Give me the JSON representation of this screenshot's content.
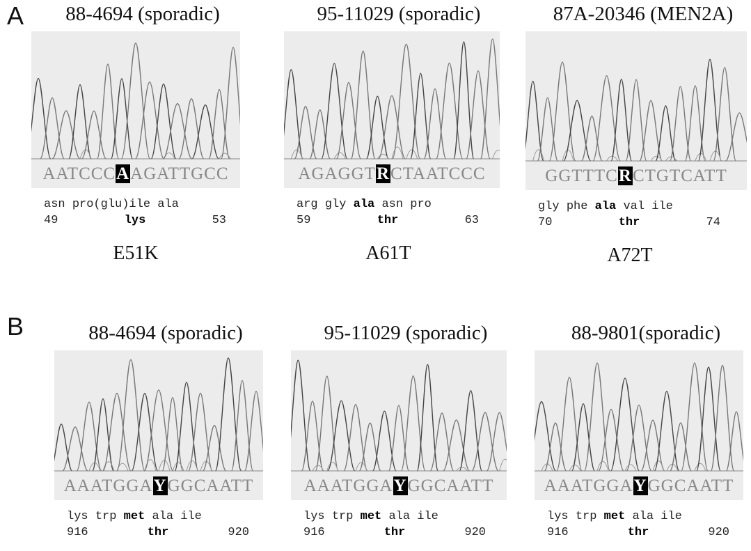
{
  "panels": [
    {
      "label": "A",
      "subpanels": [
        {
          "title": "88-4694 (sporadic)",
          "sequence": {
            "before": "AATCCC",
            "highlight": "A",
            "after": "AGATTGCC"
          },
          "residues": [
            {
              "text": "asn",
              "bold": false
            },
            {
              "text": "pro(glu)ile",
              "bold": false
            },
            {
              "text": "ala",
              "bold": false
            }
          ],
          "numbering": {
            "start": "49",
            "mutant": "lys",
            "end": "53"
          },
          "mutation": "E51K"
        },
        {
          "title": "95-11029 (sporadic)",
          "sequence": {
            "before": "AGAGGT",
            "highlight": "R",
            "after": "CTAATCCC"
          },
          "residues": [
            {
              "text": "arg",
              "bold": false
            },
            {
              "text": "gly",
              "bold": false
            },
            {
              "text": "ala",
              "bold": true
            },
            {
              "text": "asn",
              "bold": false
            },
            {
              "text": "pro",
              "bold": false
            }
          ],
          "numbering": {
            "start": "59",
            "mutant": "thr",
            "end": "63"
          },
          "mutation": "A61T"
        },
        {
          "title": "87A-20346 (MEN2A)",
          "sequence": {
            "before": "GGTTTC",
            "highlight": "R",
            "after": "CTGTCATT"
          },
          "residues": [
            {
              "text": "gly",
              "bold": false
            },
            {
              "text": "phe",
              "bold": false
            },
            {
              "text": "ala",
              "bold": true
            },
            {
              "text": "val",
              "bold": false
            },
            {
              "text": "ile",
              "bold": false
            }
          ],
          "numbering": {
            "start": "70",
            "mutant": "thr",
            "end": "74"
          },
          "mutation": "A72T"
        }
      ]
    },
    {
      "label": "B",
      "subpanels": [
        {
          "title": "88-4694 (sporadic)",
          "sequence": {
            "before": "AAATGGA",
            "highlight": "Y",
            "after": "GGCAATT"
          },
          "residues": [
            {
              "text": "lys",
              "bold": false
            },
            {
              "text": "trp",
              "bold": false
            },
            {
              "text": "met",
              "bold": true
            },
            {
              "text": "ala",
              "bold": false
            },
            {
              "text": "ile",
              "bold": false
            }
          ],
          "numbering": {
            "start": "916",
            "mutant": "thr",
            "end": "920"
          }
        },
        {
          "title": "95-11029 (sporadic)",
          "sequence": {
            "before": "AAATGGA",
            "highlight": "Y",
            "after": "GGCAATT"
          },
          "residues": [
            {
              "text": "lys",
              "bold": false
            },
            {
              "text": "trp",
              "bold": false
            },
            {
              "text": "met",
              "bold": true
            },
            {
              "text": "ala",
              "bold": false
            },
            {
              "text": "ile",
              "bold": false
            }
          ],
          "numbering": {
            "start": "916",
            "mutant": "thr",
            "end": "920"
          }
        },
        {
          "title": "88-9801(sporadic)",
          "sequence": {
            "before": "AAATGGA",
            "highlight": "Y",
            "after": "GGCAATT"
          },
          "residues": [
            {
              "text": "lys",
              "bold": false
            },
            {
              "text": "trp",
              "bold": false
            },
            {
              "text": "met",
              "bold": true
            },
            {
              "text": "ala",
              "bold": false
            },
            {
              "text": "ile",
              "bold": false
            }
          ],
          "numbering": {
            "start": "916",
            "mutant": "thr",
            "end": "920"
          }
        }
      ]
    }
  ]
}
